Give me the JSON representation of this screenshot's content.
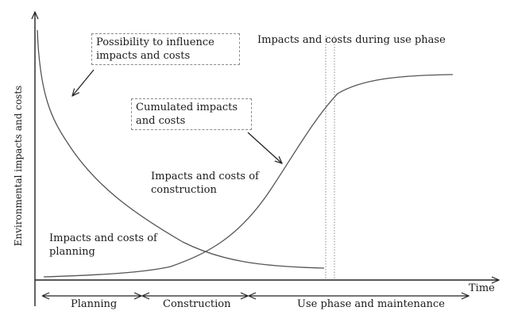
{
  "axes": {
    "y_label": "Environmental impacts and costs",
    "x_label": "Time"
  },
  "labels": {
    "influence_box": "Possibility to influence impacts and costs",
    "cumulated_box": "Cumulated impacts and costs",
    "use_phase": "Impacts and costs during use phase",
    "construction": "Impacts and costs of construction",
    "planning": "Impacts and costs of planning"
  },
  "phases": {
    "planning": "Planning",
    "construction": "Construction",
    "use": "Use phase and maintenance"
  }
}
